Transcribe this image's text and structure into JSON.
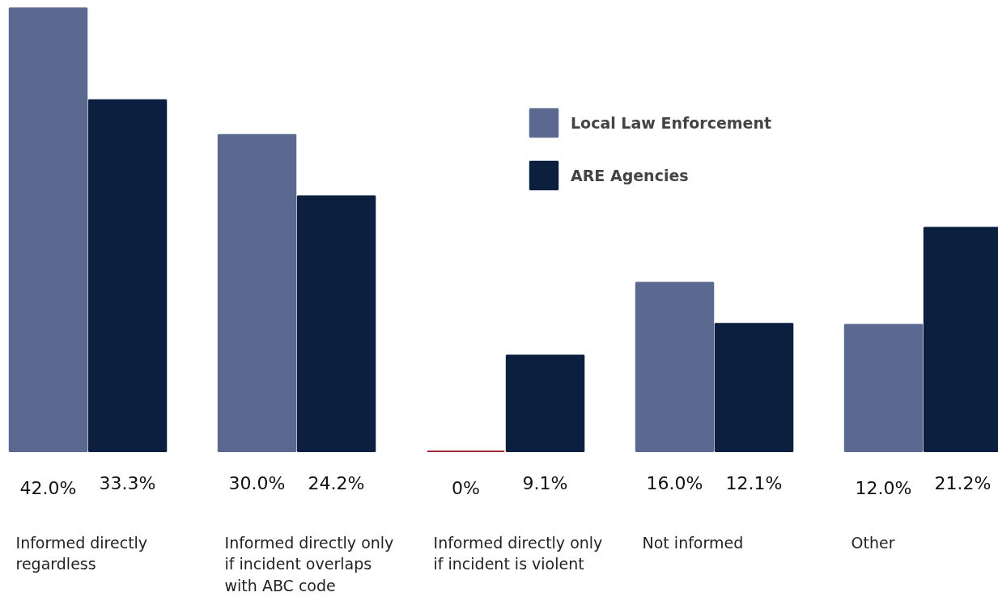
{
  "chart_data": {
    "type": "bar",
    "categories": [
      "Informed directly regardless",
      "Informed directly only if incident overlaps with ABC code",
      "Informed directly only if incident is violent",
      "Not informed",
      "Other"
    ],
    "series": [
      {
        "name": "Local Law Enforcement",
        "color": "#5b6990",
        "colors": [
          "#5b6990",
          "#5b6990",
          "#a52a3c",
          "#5b6990",
          "#5b6990"
        ],
        "values": [
          42.0,
          30.0,
          0,
          16.0,
          12.0
        ],
        "value_labels": [
          "42.0%",
          "30.0%",
          "0%",
          "16.0%",
          "12.0%"
        ]
      },
      {
        "name": "ARE Agencies",
        "color": "#0c1f3f",
        "values": [
          33.3,
          24.2,
          9.1,
          12.1,
          21.2
        ],
        "value_labels": [
          "33.3%",
          "24.2%",
          "9.1%",
          "12.1%",
          "21.2%"
        ]
      }
    ],
    "legend": "top",
    "grid": false
  }
}
